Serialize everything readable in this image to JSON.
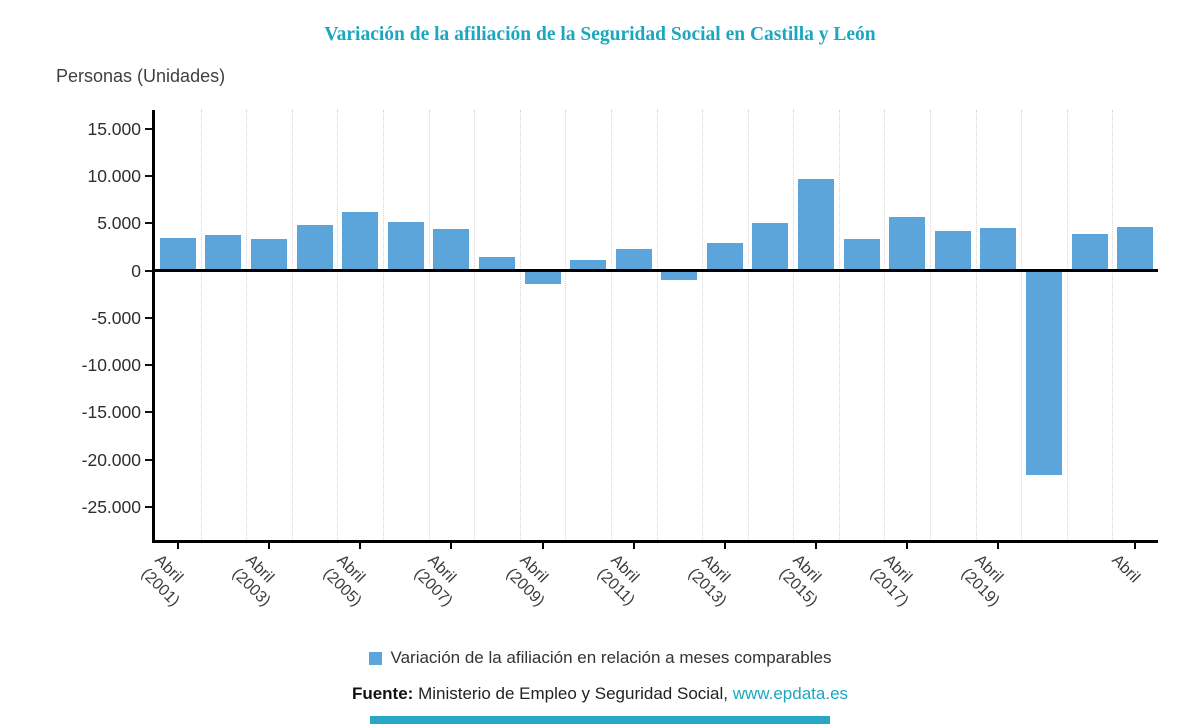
{
  "chart_data": {
    "type": "bar",
    "title": "Variación de la afiliación de la Seguridad Social en Castilla y León",
    "unit_label": "Personas (Unidades)",
    "legend_label": "Variación de la afiliación en relación a meses comparables",
    "n_bars": 22,
    "values": [
      3500,
      3800,
      3300,
      4800,
      6200,
      5100,
      4400,
      1400,
      -1400,
      1100,
      2300,
      -1000,
      2900,
      5000,
      9700,
      3400,
      5700,
      4200,
      4500,
      -21600,
      3900,
      4600
    ],
    "x_tick_labels": [
      {
        "index": 0,
        "line1": "Abril",
        "line2": "(2001)"
      },
      {
        "index": 2,
        "line1": "Abril",
        "line2": "(2003)"
      },
      {
        "index": 4,
        "line1": "Abril",
        "line2": "(2005)"
      },
      {
        "index": 6,
        "line1": "Abril",
        "line2": "(2007)"
      },
      {
        "index": 8,
        "line1": "Abril",
        "line2": "(2009)"
      },
      {
        "index": 10,
        "line1": "Abril",
        "line2": "(2011)"
      },
      {
        "index": 12,
        "line1": "Abril",
        "line2": "(2013)"
      },
      {
        "index": 14,
        "line1": "Abril",
        "line2": "(2015)"
      },
      {
        "index": 16,
        "line1": "Abril",
        "line2": "(2017)"
      },
      {
        "index": 18,
        "line1": "Abril",
        "line2": "(2019)"
      },
      {
        "index": 21,
        "line1": "Abril",
        "line2": ""
      }
    ],
    "y_ticks": [
      {
        "value": 15000,
        "label": "15.000"
      },
      {
        "value": 10000,
        "label": "10.000"
      },
      {
        "value": 5000,
        "label": "5.000"
      },
      {
        "value": 0,
        "label": "0"
      },
      {
        "value": -5000,
        "label": "-5.000"
      },
      {
        "value": -10000,
        "label": "-10.000"
      },
      {
        "value": -15000,
        "label": "-15.000"
      },
      {
        "value": -20000,
        "label": "-20.000"
      },
      {
        "value": -25000,
        "label": "-25.000"
      }
    ],
    "ylim": [
      -28500,
      17000
    ],
    "grid": "vertical-dotted",
    "legend_position": "bottom-center",
    "colors": {
      "bar": "#5BA5DB",
      "accent": "#1CA6C0",
      "strip": "#2AA7C4"
    }
  },
  "footer": {
    "source_label": "Fuente:",
    "source_text": " Ministerio de Empleo y Seguridad Social, ",
    "source_link": "www.epdata.es"
  }
}
